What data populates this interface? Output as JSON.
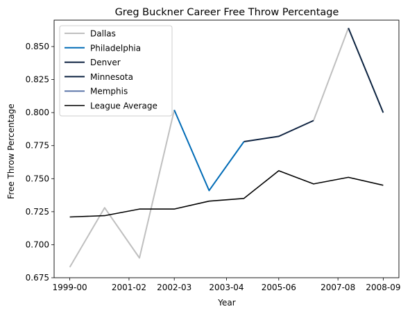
{
  "chart_data": {
    "type": "line",
    "title": "Greg Buckner Career Free Throw Percentage",
    "xlabel": "Year",
    "ylabel": "Free Throw Percentage",
    "x_tick_labels": [
      "1999-00",
      "2001-02",
      "2002-03",
      "2003-04",
      "2005-06",
      "2007-08",
      "2008-09"
    ],
    "ylim": [
      0.675,
      0.87
    ],
    "y_ticks": [
      0.675,
      0.7,
      0.725,
      0.75,
      0.775,
      0.8,
      0.825,
      0.85
    ],
    "y_tick_labels": [
      "0.675",
      "0.700",
      "0.725",
      "0.750",
      "0.775",
      "0.800",
      "0.825",
      "0.850"
    ],
    "grid": false,
    "legend_position": "top-left",
    "series": [
      {
        "name": "Dallas",
        "color": "#bfbfbf",
        "width": 2,
        "segments": [
          [
            [
              0,
              0.683
            ],
            [
              1,
              0.728
            ],
            [
              2,
              0.69
            ],
            [
              3,
              0.802
            ]
          ],
          [
            [
              7,
              0.794
            ],
            [
              8,
              0.864
            ]
          ]
        ]
      },
      {
        "name": "Philadelphia",
        "color": "#006bb6",
        "width": 2,
        "segments": [
          [
            [
              3,
              0.802
            ],
            [
              4,
              0.741
            ],
            [
              5,
              0.778
            ]
          ]
        ]
      },
      {
        "name": "Denver",
        "color": "#0e2240",
        "width": 2,
        "segments": [
          [
            [
              5,
              0.778
            ],
            [
              6,
              0.782
            ],
            [
              7,
              0.794
            ]
          ]
        ]
      },
      {
        "name": "Minnesota",
        "color": "#0c2340",
        "width": 2,
        "segments": [
          [
            [
              8,
              0.864
            ],
            [
              9,
              0.8
            ]
          ]
        ]
      },
      {
        "name": "Memphis",
        "color": "#5d76a9",
        "width": 2,
        "segments": []
      },
      {
        "name": "League Average",
        "color": "#000000",
        "width": 1.6,
        "segments": [
          [
            [
              0,
              0.721
            ],
            [
              1,
              0.722
            ],
            [
              2,
              0.727
            ],
            [
              3,
              0.727
            ],
            [
              4,
              0.733
            ],
            [
              5,
              0.735
            ],
            [
              6,
              0.756
            ],
            [
              7,
              0.746
            ],
            [
              8,
              0.751
            ],
            [
              9,
              0.745
            ]
          ]
        ]
      }
    ]
  }
}
